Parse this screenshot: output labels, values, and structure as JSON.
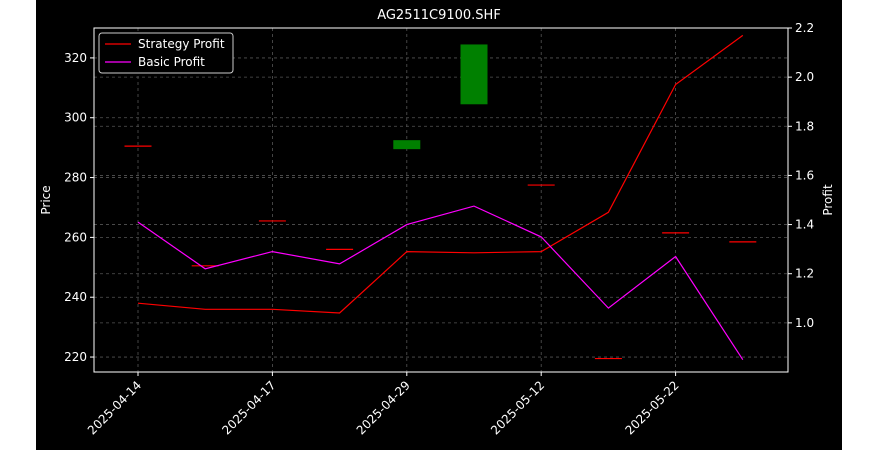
{
  "chart_data": {
    "type": "line",
    "title": "AG2511C9100.SHF",
    "ylabel": "Price",
    "y2label": "Profit",
    "ylim": [
      215,
      330
    ],
    "y2lim": [
      0.8,
      2.2
    ],
    "grid": true,
    "legend_position": "top-left",
    "x_tick_labels": [
      "2025-04-14",
      "2025-04-17",
      "2025-04-29",
      "2025-05-12",
      "2025-05-22"
    ],
    "y_ticks": [
      220,
      240,
      260,
      280,
      300,
      320
    ],
    "y2_ticks": [
      1.0,
      1.2,
      1.4,
      1.6,
      1.8,
      2.0,
      2.2
    ],
    "candles": [
      {
        "index": 0,
        "open": 290.5,
        "close": 290.5
      },
      {
        "index": 1,
        "open": 250.5,
        "close": 250.5
      },
      {
        "index": 2,
        "open": 265.5,
        "close": 265.5
      },
      {
        "index": 3,
        "open": 256.0,
        "close": 256.0
      },
      {
        "index": 4,
        "open": 289.5,
        "close": 292.5
      },
      {
        "index": 5,
        "open": 304.5,
        "close": 324.5
      },
      {
        "index": 6,
        "open": 277.5,
        "close": 277.5
      },
      {
        "index": 7,
        "open": 219.5,
        "close": 219.5
      },
      {
        "index": 8,
        "open": 261.5,
        "close": 261.5
      },
      {
        "index": 9,
        "open": 258.5,
        "close": 258.5
      }
    ],
    "series": [
      {
        "name": "Strategy Profit",
        "color": "#ff0000",
        "axis": "right",
        "values": [
          1.08,
          1.055,
          1.055,
          1.04,
          1.29,
          1.285,
          1.29,
          1.45,
          1.97,
          2.17
        ]
      },
      {
        "name": "Basic Profit",
        "color": "#ff00ff",
        "axis": "right",
        "values": [
          1.41,
          1.22,
          1.29,
          1.24,
          1.4,
          1.475,
          1.35,
          1.06,
          1.27,
          0.85
        ]
      }
    ],
    "candle_up_color": "#008000",
    "candle_flat_color": "#ff0000"
  }
}
